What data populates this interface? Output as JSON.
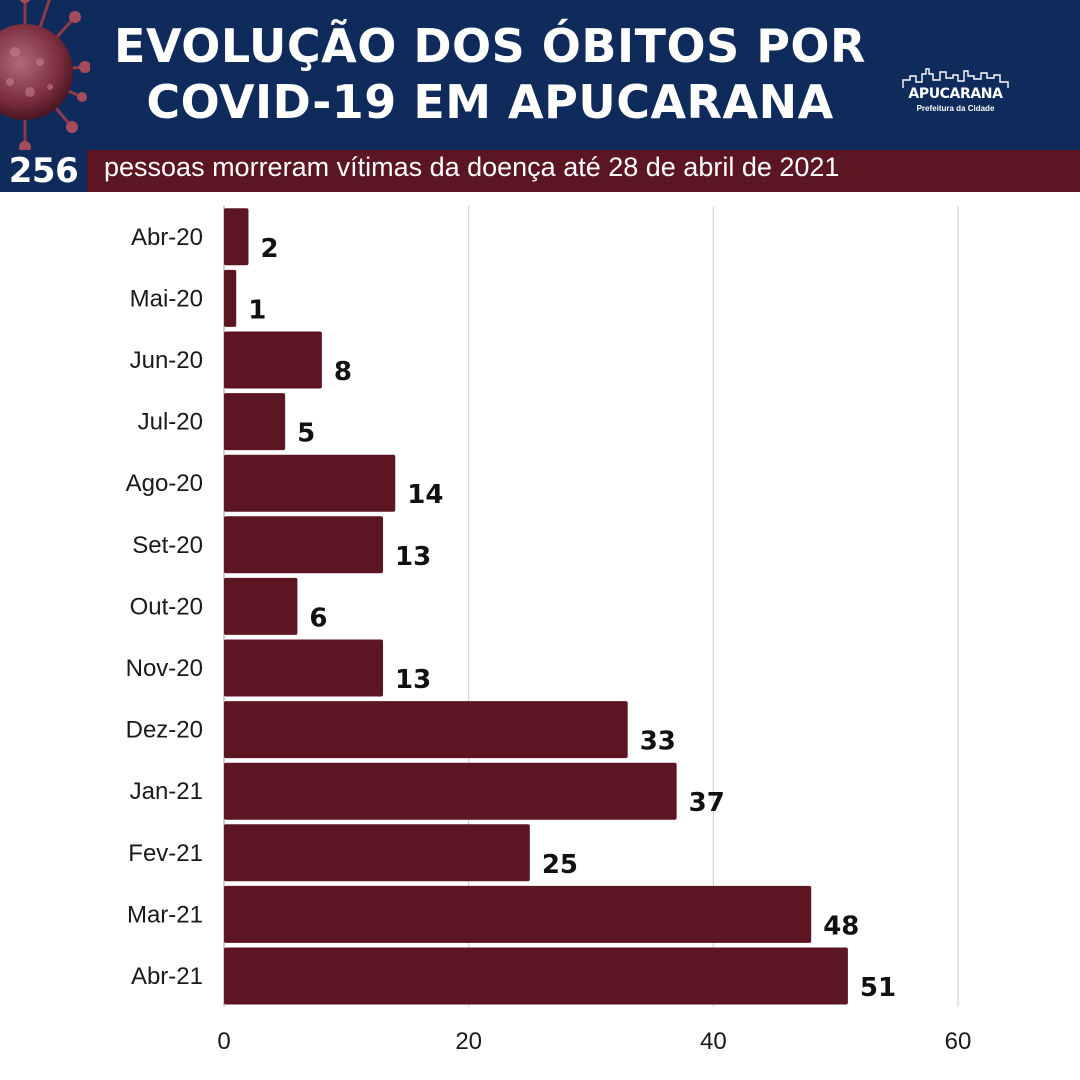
{
  "header": {
    "title_line1": "EVOLUÇÃO DOS ÓBITOS POR",
    "title_line2": "COVID-19 EM APUCARANA",
    "logo_name": "APUCARANA",
    "logo_subtitle": "Prefeitura da Cidade"
  },
  "summary": {
    "total": "256",
    "text": "pessoas morreram vítimas da doença até 28 de abril de 2021"
  },
  "colors": {
    "header_bg": "#0f2b5c",
    "bar": "#5c1622",
    "grid": "#cccccc"
  },
  "chart_data": {
    "type": "bar",
    "orientation": "horizontal",
    "categories": [
      "Abr-20",
      "Mai-20",
      "Jun-20",
      "Jul-20",
      "Ago-20",
      "Set-20",
      "Out-20",
      "Nov-20",
      "Dez-20",
      "Jan-21",
      "Fev-21",
      "Mar-21",
      "Abr-21"
    ],
    "values": [
      2,
      1,
      8,
      5,
      14,
      13,
      6,
      13,
      33,
      37,
      25,
      48,
      51
    ],
    "xlim": [
      0,
      60
    ],
    "xticks": [
      0,
      20,
      40,
      60
    ],
    "grid": true,
    "data_labels": true
  }
}
